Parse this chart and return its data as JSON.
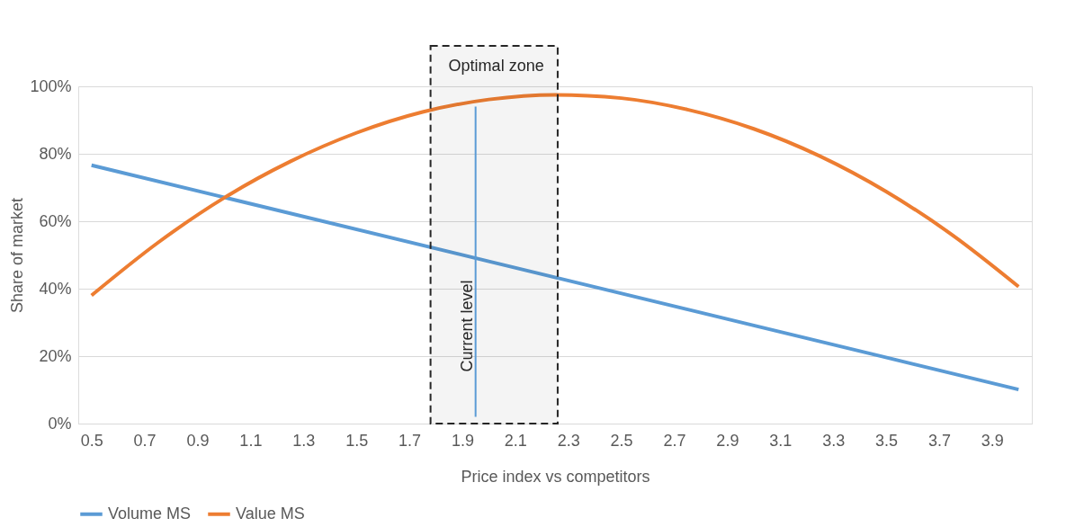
{
  "chart_data": {
    "type": "line",
    "xlabel": "Price index vs competitors",
    "ylabel": "Share of market",
    "xlim": [
      0.45,
      4.05
    ],
    "xticks": [
      0.5,
      0.7,
      0.9,
      1.1,
      1.3,
      1.5,
      1.7,
      1.9,
      2.1,
      2.3,
      2.5,
      2.7,
      2.9,
      3.1,
      3.3,
      3.5,
      3.7,
      3.9
    ],
    "ylim": [
      0,
      100
    ],
    "yticks": [
      {
        "value": 0,
        "label": "0%"
      },
      {
        "value": 20,
        "label": "20%"
      },
      {
        "value": 40,
        "label": "40%"
      },
      {
        "value": 60,
        "label": "60%"
      },
      {
        "value": 80,
        "label": "80%"
      },
      {
        "value": 100,
        "label": "100%"
      }
    ],
    "grid": "y",
    "legend": "bottom",
    "marker": "none",
    "line_style": "solid",
    "series": [
      {
        "name": "Volume MS",
        "color": "#5b9bd5",
        "x": [
          0.5,
          1.0,
          2.0,
          3.0,
          4.0
        ],
        "values": [
          76.6,
          67.1,
          48.1,
          29.1,
          10.1
        ]
      },
      {
        "name": "Value MS",
        "color": "#ed7d31",
        "x": [
          0.5,
          0.75,
          1.0,
          1.25,
          1.5,
          1.75,
          2.0,
          2.25,
          2.5,
          2.75,
          3.0,
          3.25,
          3.5,
          3.75,
          4.0
        ],
        "values": [
          38.0,
          53.6,
          66.9,
          77.7,
          86.2,
          92.4,
          96.1,
          97.5,
          96.5,
          93.1,
          87.4,
          79.3,
          68.8,
          55.9,
          40.6
        ]
      }
    ],
    "bands": [
      {
        "axis": "x",
        "from": 1.78,
        "to": 2.26,
        "label": "Optimal zone",
        "color": "#262626"
      }
    ],
    "ref_lines": [
      {
        "axis": "x",
        "value": 1.95,
        "label": "Current level",
        "color": "#5b9bd5"
      }
    ]
  }
}
